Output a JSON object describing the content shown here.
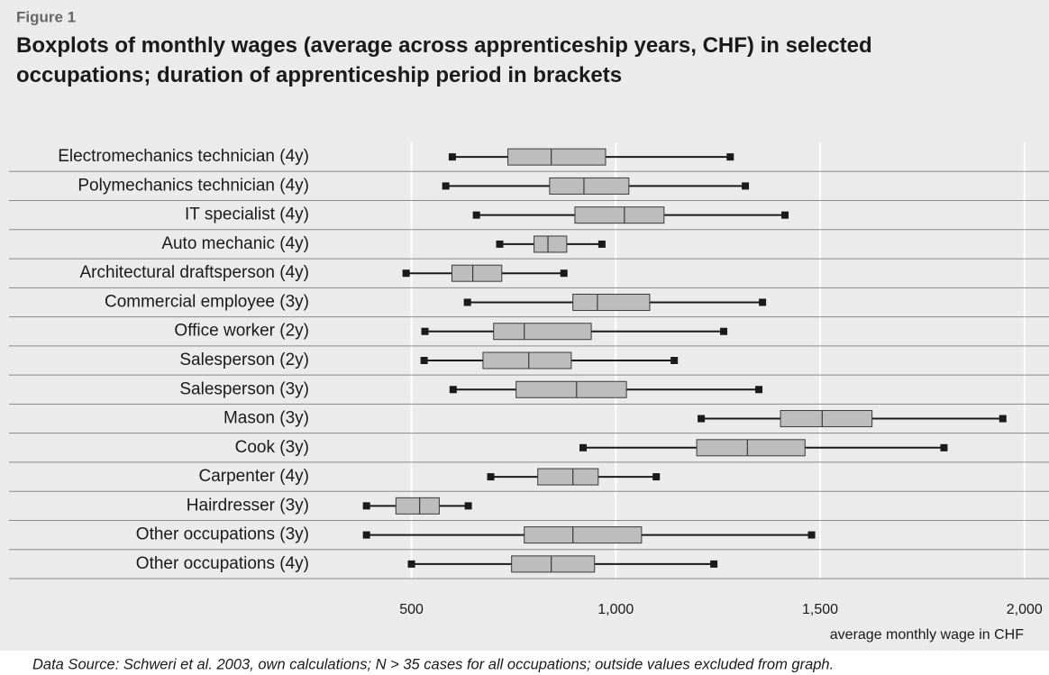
{
  "figure_label": "Figure 1",
  "chart_data": {
    "type": "boxplot",
    "title": "Boxplots of monthly wages (average across apprenticeship years, CHF) in selected occupations; duration of apprenticeship period in brackets",
    "x_label": "average monthly wage in CHF",
    "source": "Data Source: Schweri et al. 2003, own calculations; N > 35 cases for all occupations; outside values excluded from graph.",
    "categories": [
      "Electromechanics technician (4y)",
      "Polymechanics technician (4y)",
      "IT specialist (4y)",
      "Auto mechanic (4y)",
      "Architectural draftsperson (4y)",
      "Commercial employee (3y)",
      "Office worker (2y)",
      "Salesperson (2y)",
      "Salesperson (3y)",
      "Mason (3y)",
      "Cook (3y)",
      "Carpenter (4y)",
      "Hairdresser (3y)",
      "Other occupations (3y)",
      "Other occupations (4y)"
    ],
    "min": [
      600,
      584,
      659,
      716,
      487,
      637,
      533,
      531,
      602,
      1209,
      920,
      694,
      390,
      390,
      500
    ],
    "q1": [
      736,
      838,
      900,
      800,
      599,
      895,
      701,
      675,
      756,
      1403,
      1198,
      809,
      462,
      776,
      745
    ],
    "median": [
      842,
      922,
      1021,
      834,
      650,
      955,
      776,
      787,
      904,
      1505,
      1322,
      895,
      520,
      895,
      842
    ],
    "q3": [
      975,
      1032,
      1118,
      880,
      721,
      1083,
      940,
      891,
      1026,
      1627,
      1463,
      957,
      568,
      1063,
      948
    ],
    "max": [
      1280,
      1317,
      1414,
      966,
      873,
      1359,
      1264,
      1143,
      1350,
      1947,
      1803,
      1099,
      639,
      1479,
      1240
    ],
    "box_color": "#bdbdbd",
    "xlim": [
      265,
      2060
    ],
    "xticks": [
      500,
      {
        "value": 1000,
        "label": "1,000"
      },
      {
        "value": 1500,
        "label": "1,500"
      },
      {
        "value": 2000,
        "label": "2,000"
      }
    ],
    "grid": true
  }
}
